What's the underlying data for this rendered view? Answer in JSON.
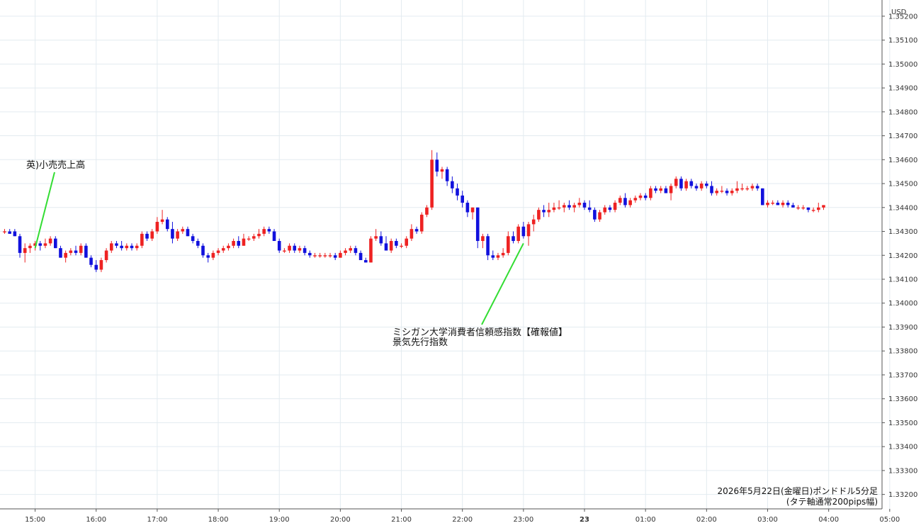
{
  "chart_data": {
    "type": "candlestick",
    "title": "",
    "caption_lines": [
      "2026年5月22日(金曜日)ポンドドル5分足",
      "(タテ軸通常200pips幅)"
    ],
    "y_unit": "USD",
    "ylim": [
      1.3315,
      1.3525
    ],
    "y_ticks": [
      1.352,
      1.351,
      1.35,
      1.349,
      1.348,
      1.347,
      1.346,
      1.345,
      1.344,
      1.343,
      1.342,
      1.341,
      1.34,
      1.339,
      1.338,
      1.337,
      1.336,
      1.335,
      1.334,
      1.333,
      1.332
    ],
    "y_tick_labels": [
      "1.35200",
      "1.35100",
      "1.35000",
      "1.34900",
      "1.34800",
      "1.34700",
      "1.34600",
      "1.34500",
      "1.34400",
      "1.34300",
      "1.34200",
      "1.34100",
      "1.34000",
      "1.33900",
      "1.33800",
      "1.33700",
      "1.33600",
      "1.33500",
      "1.33400",
      "1.33300",
      "1.33200"
    ],
    "x_ticks": [
      {
        "label": "15:00",
        "bar": 6,
        "bold": false
      },
      {
        "label": "16:00",
        "bar": 18,
        "bold": false
      },
      {
        "label": "17:00",
        "bar": 30,
        "bold": false
      },
      {
        "label": "18:00",
        "bar": 42,
        "bold": false
      },
      {
        "label": "19:00",
        "bar": 54,
        "bold": false
      },
      {
        "label": "20:00",
        "bar": 66,
        "bold": false
      },
      {
        "label": "21:00",
        "bar": 78,
        "bold": false
      },
      {
        "label": "22:00",
        "bar": 90,
        "bold": false
      },
      {
        "label": "23:00",
        "bar": 102,
        "bold": false
      },
      {
        "label": "23",
        "bar": 114,
        "bold": true
      },
      {
        "label": "01:00",
        "bar": 126,
        "bold": false
      },
      {
        "label": "02:00",
        "bar": 138,
        "bold": false
      },
      {
        "label": "03:00",
        "bar": 150,
        "bold": false
      },
      {
        "label": "04:00",
        "bar": 162,
        "bold": false
      },
      {
        "label": "05:00",
        "bar": 174,
        "bold": false
      }
    ],
    "colors": {
      "up": "#ee2222",
      "down": "#1111dd",
      "grid": "#e3ebf0",
      "annotation_line": "#33dd33"
    },
    "annotations": [
      {
        "lines": [
          "英)小売売上高"
        ],
        "bar": 6,
        "price": 1.3423
      },
      {
        "lines": [
          "ミシガン大学消費者信頼感指数【確報値】",
          "景気先行指数"
        ],
        "bar": 102,
        "price": 1.3425
      }
    ],
    "candles": [
      {
        "o": 1.343,
        "h": 1.3431,
        "l": 1.3429,
        "c": 1.343
      },
      {
        "o": 1.343,
        "h": 1.3431,
        "l": 1.3429,
        "c": 1.3429
      },
      {
        "o": 1.343,
        "h": 1.3431,
        "l": 1.3428,
        "c": 1.3428
      },
      {
        "o": 1.3428,
        "h": 1.3429,
        "l": 1.3419,
        "c": 1.3421
      },
      {
        "o": 1.3421,
        "h": 1.3425,
        "l": 1.3417,
        "c": 1.3423
      },
      {
        "o": 1.3423,
        "h": 1.3425,
        "l": 1.3421,
        "c": 1.3424
      },
      {
        "o": 1.3424,
        "h": 1.3426,
        "l": 1.3422,
        "c": 1.3425
      },
      {
        "o": 1.3425,
        "h": 1.3426,
        "l": 1.3422,
        "c": 1.3424
      },
      {
        "o": 1.3424,
        "h": 1.3427,
        "l": 1.3423,
        "c": 1.3425
      },
      {
        "o": 1.3425,
        "h": 1.3428,
        "l": 1.3424,
        "c": 1.3427
      },
      {
        "o": 1.3427,
        "h": 1.3428,
        "l": 1.3423,
        "c": 1.3423
      },
      {
        "o": 1.3423,
        "h": 1.3424,
        "l": 1.3419,
        "c": 1.3419
      },
      {
        "o": 1.3419,
        "h": 1.3422,
        "l": 1.3417,
        "c": 1.3421
      },
      {
        "o": 1.3421,
        "h": 1.3423,
        "l": 1.342,
        "c": 1.3422
      },
      {
        "o": 1.3422,
        "h": 1.3424,
        "l": 1.342,
        "c": 1.3421
      },
      {
        "o": 1.3421,
        "h": 1.3425,
        "l": 1.342,
        "c": 1.3424
      },
      {
        "o": 1.3424,
        "h": 1.3425,
        "l": 1.3419,
        "c": 1.3419
      },
      {
        "o": 1.3419,
        "h": 1.342,
        "l": 1.3415,
        "c": 1.3416
      },
      {
        "o": 1.3416,
        "h": 1.3418,
        "l": 1.3413,
        "c": 1.3414
      },
      {
        "o": 1.3414,
        "h": 1.3419,
        "l": 1.3413,
        "c": 1.3418
      },
      {
        "o": 1.3418,
        "h": 1.3423,
        "l": 1.3417,
        "c": 1.3422
      },
      {
        "o": 1.3422,
        "h": 1.3426,
        "l": 1.3421,
        "c": 1.3425
      },
      {
        "o": 1.3425,
        "h": 1.3426,
        "l": 1.3423,
        "c": 1.3424
      },
      {
        "o": 1.3424,
        "h": 1.3426,
        "l": 1.3422,
        "c": 1.3423
      },
      {
        "o": 1.3423,
        "h": 1.3425,
        "l": 1.3422,
        "c": 1.3424
      },
      {
        "o": 1.3424,
        "h": 1.3425,
        "l": 1.3422,
        "c": 1.3423
      },
      {
        "o": 1.3423,
        "h": 1.3425,
        "l": 1.3422,
        "c": 1.3424
      },
      {
        "o": 1.3424,
        "h": 1.343,
        "l": 1.3423,
        "c": 1.3429
      },
      {
        "o": 1.3429,
        "h": 1.343,
        "l": 1.3426,
        "c": 1.3427
      },
      {
        "o": 1.3427,
        "h": 1.3431,
        "l": 1.3426,
        "c": 1.343
      },
      {
        "o": 1.343,
        "h": 1.3436,
        "l": 1.3429,
        "c": 1.3434
      },
      {
        "o": 1.3434,
        "h": 1.3439,
        "l": 1.3433,
        "c": 1.3435
      },
      {
        "o": 1.3435,
        "h": 1.3436,
        "l": 1.343,
        "c": 1.3431
      },
      {
        "o": 1.3431,
        "h": 1.3434,
        "l": 1.3425,
        "c": 1.3427
      },
      {
        "o": 1.3427,
        "h": 1.3431,
        "l": 1.3426,
        "c": 1.343
      },
      {
        "o": 1.343,
        "h": 1.3432,
        "l": 1.3429,
        "c": 1.3431
      },
      {
        "o": 1.3431,
        "h": 1.3432,
        "l": 1.3428,
        "c": 1.3428
      },
      {
        "o": 1.3428,
        "h": 1.3429,
        "l": 1.3425,
        "c": 1.3426
      },
      {
        "o": 1.3426,
        "h": 1.3427,
        "l": 1.3423,
        "c": 1.3424
      },
      {
        "o": 1.3424,
        "h": 1.3425,
        "l": 1.3419,
        "c": 1.342
      },
      {
        "o": 1.342,
        "h": 1.3421,
        "l": 1.3417,
        "c": 1.3419
      },
      {
        "o": 1.3419,
        "h": 1.3422,
        "l": 1.3418,
        "c": 1.3421
      },
      {
        "o": 1.3421,
        "h": 1.3423,
        "l": 1.342,
        "c": 1.3422
      },
      {
        "o": 1.3422,
        "h": 1.3424,
        "l": 1.3421,
        "c": 1.3423
      },
      {
        "o": 1.3423,
        "h": 1.3425,
        "l": 1.3422,
        "c": 1.3424
      },
      {
        "o": 1.3424,
        "h": 1.3427,
        "l": 1.3423,
        "c": 1.3426
      },
      {
        "o": 1.3426,
        "h": 1.3428,
        "l": 1.3423,
        "c": 1.3424
      },
      {
        "o": 1.3424,
        "h": 1.3429,
        "l": 1.3424,
        "c": 1.3427
      },
      {
        "o": 1.3427,
        "h": 1.3428,
        "l": 1.3426,
        "c": 1.3427
      },
      {
        "o": 1.3427,
        "h": 1.3429,
        "l": 1.3426,
        "c": 1.3428
      },
      {
        "o": 1.3428,
        "h": 1.3431,
        "l": 1.3427,
        "c": 1.3429
      },
      {
        "o": 1.3429,
        "h": 1.3432,
        "l": 1.3428,
        "c": 1.3431
      },
      {
        "o": 1.3431,
        "h": 1.3432,
        "l": 1.3429,
        "c": 1.343
      },
      {
        "o": 1.343,
        "h": 1.3431,
        "l": 1.3426,
        "c": 1.3426
      },
      {
        "o": 1.3426,
        "h": 1.3427,
        "l": 1.3421,
        "c": 1.3422
      },
      {
        "o": 1.3422,
        "h": 1.3423,
        "l": 1.3421,
        "c": 1.3422
      },
      {
        "o": 1.3422,
        "h": 1.3425,
        "l": 1.3421,
        "c": 1.3424
      },
      {
        "o": 1.3424,
        "h": 1.3425,
        "l": 1.3421,
        "c": 1.3422
      },
      {
        "o": 1.3422,
        "h": 1.3424,
        "l": 1.3421,
        "c": 1.3423
      },
      {
        "o": 1.3423,
        "h": 1.3424,
        "l": 1.342,
        "c": 1.3421
      },
      {
        "o": 1.3421,
        "h": 1.3422,
        "l": 1.3419,
        "c": 1.342
      },
      {
        "o": 1.342,
        "h": 1.3421,
        "l": 1.3419,
        "c": 1.342
      },
      {
        "o": 1.342,
        "h": 1.3421,
        "l": 1.3419,
        "c": 1.342
      },
      {
        "o": 1.342,
        "h": 1.3421,
        "l": 1.3419,
        "c": 1.342
      },
      {
        "o": 1.342,
        "h": 1.3421,
        "l": 1.3419,
        "c": 1.342
      },
      {
        "o": 1.342,
        "h": 1.3421,
        "l": 1.3418,
        "c": 1.3419
      },
      {
        "o": 1.3419,
        "h": 1.3422,
        "l": 1.3419,
        "c": 1.3421
      },
      {
        "o": 1.3421,
        "h": 1.3423,
        "l": 1.342,
        "c": 1.3422
      },
      {
        "o": 1.3422,
        "h": 1.3424,
        "l": 1.3421,
        "c": 1.3423
      },
      {
        "o": 1.3423,
        "h": 1.3424,
        "l": 1.342,
        "c": 1.3421
      },
      {
        "o": 1.3421,
        "h": 1.3422,
        "l": 1.3418,
        "c": 1.3418
      },
      {
        "o": 1.3418,
        "h": 1.3419,
        "l": 1.3417,
        "c": 1.3417
      },
      {
        "o": 1.3417,
        "h": 1.3428,
        "l": 1.3417,
        "c": 1.3427
      },
      {
        "o": 1.3427,
        "h": 1.3431,
        "l": 1.3426,
        "c": 1.3428
      },
      {
        "o": 1.3428,
        "h": 1.343,
        "l": 1.3424,
        "c": 1.3425
      },
      {
        "o": 1.3425,
        "h": 1.3428,
        "l": 1.3422,
        "c": 1.3422
      },
      {
        "o": 1.3422,
        "h": 1.3427,
        "l": 1.3421,
        "c": 1.3426
      },
      {
        "o": 1.3426,
        "h": 1.3427,
        "l": 1.3423,
        "c": 1.3424
      },
      {
        "o": 1.3424,
        "h": 1.3425,
        "l": 1.3423,
        "c": 1.3424
      },
      {
        "o": 1.3424,
        "h": 1.3428,
        "l": 1.3423,
        "c": 1.3427
      },
      {
        "o": 1.3427,
        "h": 1.3433,
        "l": 1.3426,
        "c": 1.3431
      },
      {
        "o": 1.3431,
        "h": 1.3432,
        "l": 1.3429,
        "c": 1.343
      },
      {
        "o": 1.343,
        "h": 1.3438,
        "l": 1.3429,
        "c": 1.3437
      },
      {
        "o": 1.3437,
        "h": 1.3441,
        "l": 1.3436,
        "c": 1.344
      },
      {
        "o": 1.344,
        "h": 1.3464,
        "l": 1.3439,
        "c": 1.346
      },
      {
        "o": 1.346,
        "h": 1.3463,
        "l": 1.3453,
        "c": 1.3455
      },
      {
        "o": 1.3455,
        "h": 1.3457,
        "l": 1.3452,
        "c": 1.3456
      },
      {
        "o": 1.3456,
        "h": 1.3457,
        "l": 1.3449,
        "c": 1.3451
      },
      {
        "o": 1.3451,
        "h": 1.3453,
        "l": 1.3446,
        "c": 1.3448
      },
      {
        "o": 1.3448,
        "h": 1.345,
        "l": 1.3443,
        "c": 1.3445
      },
      {
        "o": 1.3445,
        "h": 1.3447,
        "l": 1.344,
        "c": 1.3442
      },
      {
        "o": 1.3442,
        "h": 1.3443,
        "l": 1.3436,
        "c": 1.3438
      },
      {
        "o": 1.3438,
        "h": 1.344,
        "l": 1.3435,
        "c": 1.344
      },
      {
        "o": 1.344,
        "h": 1.344,
        "l": 1.3423,
        "c": 1.3426
      },
      {
        "o": 1.3426,
        "h": 1.3429,
        "l": 1.3423,
        "c": 1.3428
      },
      {
        "o": 1.3428,
        "h": 1.3429,
        "l": 1.3418,
        "c": 1.342
      },
      {
        "o": 1.342,
        "h": 1.3422,
        "l": 1.3418,
        "c": 1.3419
      },
      {
        "o": 1.3419,
        "h": 1.3421,
        "l": 1.3418,
        "c": 1.342
      },
      {
        "o": 1.342,
        "h": 1.3423,
        "l": 1.3419,
        "c": 1.3421
      },
      {
        "o": 1.3421,
        "h": 1.343,
        "l": 1.342,
        "c": 1.3428
      },
      {
        "o": 1.3428,
        "h": 1.343,
        "l": 1.3425,
        "c": 1.3426
      },
      {
        "o": 1.3426,
        "h": 1.3433,
        "l": 1.3425,
        "c": 1.3432
      },
      {
        "o": 1.3432,
        "h": 1.3434,
        "l": 1.3427,
        "c": 1.3428
      },
      {
        "o": 1.3428,
        "h": 1.3434,
        "l": 1.3424,
        "c": 1.3433
      },
      {
        "o": 1.3433,
        "h": 1.3437,
        "l": 1.343,
        "c": 1.3435
      },
      {
        "o": 1.3435,
        "h": 1.344,
        "l": 1.3434,
        "c": 1.3439
      },
      {
        "o": 1.3439,
        "h": 1.3441,
        "l": 1.3436,
        "c": 1.3438
      },
      {
        "o": 1.3438,
        "h": 1.3442,
        "l": 1.3436,
        "c": 1.3439
      },
      {
        "o": 1.3439,
        "h": 1.3442,
        "l": 1.3438,
        "c": 1.344
      },
      {
        "o": 1.344,
        "h": 1.3443,
        "l": 1.3439,
        "c": 1.344
      },
      {
        "o": 1.344,
        "h": 1.3442,
        "l": 1.3438,
        "c": 1.3441
      },
      {
        "o": 1.3441,
        "h": 1.3443,
        "l": 1.3439,
        "c": 1.344
      },
      {
        "o": 1.344,
        "h": 1.3442,
        "l": 1.3438,
        "c": 1.3441
      },
      {
        "o": 1.3441,
        "h": 1.3444,
        "l": 1.344,
        "c": 1.3442
      },
      {
        "o": 1.3442,
        "h": 1.3443,
        "l": 1.3439,
        "c": 1.344
      },
      {
        "o": 1.344,
        "h": 1.3443,
        "l": 1.3438,
        "c": 1.3439
      },
      {
        "o": 1.3439,
        "h": 1.344,
        "l": 1.3434,
        "c": 1.3435
      },
      {
        "o": 1.3435,
        "h": 1.3439,
        "l": 1.3434,
        "c": 1.3438
      },
      {
        "o": 1.3438,
        "h": 1.3441,
        "l": 1.3437,
        "c": 1.344
      },
      {
        "o": 1.344,
        "h": 1.3441,
        "l": 1.3438,
        "c": 1.3439
      },
      {
        "o": 1.3439,
        "h": 1.3443,
        "l": 1.3438,
        "c": 1.3442
      },
      {
        "o": 1.3442,
        "h": 1.3445,
        "l": 1.3441,
        "c": 1.3444
      },
      {
        "o": 1.3444,
        "h": 1.3446,
        "l": 1.344,
        "c": 1.3441
      },
      {
        "o": 1.3441,
        "h": 1.3444,
        "l": 1.344,
        "c": 1.3443
      },
      {
        "o": 1.3443,
        "h": 1.3445,
        "l": 1.3442,
        "c": 1.3444
      },
      {
        "o": 1.3444,
        "h": 1.3446,
        "l": 1.3443,
        "c": 1.3445
      },
      {
        "o": 1.3445,
        "h": 1.3446,
        "l": 1.3443,
        "c": 1.3444
      },
      {
        "o": 1.3444,
        "h": 1.3449,
        "l": 1.3443,
        "c": 1.3448
      },
      {
        "o": 1.3448,
        "h": 1.3449,
        "l": 1.3446,
        "c": 1.3447
      },
      {
        "o": 1.3447,
        "h": 1.3449,
        "l": 1.3446,
        "c": 1.3448
      },
      {
        "o": 1.3448,
        "h": 1.3449,
        "l": 1.3446,
        "c": 1.3446
      },
      {
        "o": 1.3446,
        "h": 1.345,
        "l": 1.3443,
        "c": 1.3449
      },
      {
        "o": 1.3449,
        "h": 1.3453,
        "l": 1.3448,
        "c": 1.3452
      },
      {
        "o": 1.3452,
        "h": 1.3453,
        "l": 1.3447,
        "c": 1.3448
      },
      {
        "o": 1.3448,
        "h": 1.3452,
        "l": 1.3447,
        "c": 1.3451
      },
      {
        "o": 1.3451,
        "h": 1.3452,
        "l": 1.3448,
        "c": 1.3449
      },
      {
        "o": 1.3449,
        "h": 1.345,
        "l": 1.3447,
        "c": 1.3448
      },
      {
        "o": 1.3448,
        "h": 1.3451,
        "l": 1.3447,
        "c": 1.345
      },
      {
        "o": 1.345,
        "h": 1.3451,
        "l": 1.3448,
        "c": 1.3449
      },
      {
        "o": 1.3449,
        "h": 1.3451,
        "l": 1.3445,
        "c": 1.3446
      },
      {
        "o": 1.3446,
        "h": 1.3448,
        "l": 1.3445,
        "c": 1.3447
      },
      {
        "o": 1.3447,
        "h": 1.3449,
        "l": 1.3446,
        "c": 1.3447
      },
      {
        "o": 1.3447,
        "h": 1.3448,
        "l": 1.3445,
        "c": 1.3446
      },
      {
        "o": 1.3446,
        "h": 1.3448,
        "l": 1.3445,
        "c": 1.3447
      },
      {
        "o": 1.3447,
        "h": 1.3451,
        "l": 1.3446,
        "c": 1.3448
      },
      {
        "o": 1.3448,
        "h": 1.345,
        "l": 1.3447,
        "c": 1.3448
      },
      {
        "o": 1.3448,
        "h": 1.3449,
        "l": 1.3447,
        "c": 1.3448
      },
      {
        "o": 1.3448,
        "h": 1.345,
        "l": 1.3447,
        "c": 1.3449
      },
      {
        "o": 1.3449,
        "h": 1.345,
        "l": 1.3447,
        "c": 1.3448
      },
      {
        "o": 1.3448,
        "h": 1.3448,
        "l": 1.3441,
        "c": 1.3441
      },
      {
        "o": 1.3441,
        "h": 1.3443,
        "l": 1.344,
        "c": 1.3442
      },
      {
        "o": 1.3442,
        "h": 1.3443,
        "l": 1.3441,
        "c": 1.3442
      },
      {
        "o": 1.3442,
        "h": 1.3443,
        "l": 1.3441,
        "c": 1.3441
      },
      {
        "o": 1.3441,
        "h": 1.3443,
        "l": 1.344,
        "c": 1.3442
      },
      {
        "o": 1.3442,
        "h": 1.3443,
        "l": 1.344,
        "c": 1.3441
      },
      {
        "o": 1.3441,
        "h": 1.3442,
        "l": 1.344,
        "c": 1.344
      },
      {
        "o": 1.344,
        "h": 1.3441,
        "l": 1.3439,
        "c": 1.344
      },
      {
        "o": 1.344,
        "h": 1.3441,
        "l": 1.3439,
        "c": 1.344
      },
      {
        "o": 1.344,
        "h": 1.344,
        "l": 1.3438,
        "c": 1.3439
      },
      {
        "o": 1.3439,
        "h": 1.344,
        "l": 1.3438,
        "c": 1.3439
      },
      {
        "o": 1.3439,
        "h": 1.3442,
        "l": 1.3438,
        "c": 1.344
      },
      {
        "o": 1.344,
        "h": 1.3441,
        "l": 1.3439,
        "c": 1.3441
      }
    ]
  }
}
